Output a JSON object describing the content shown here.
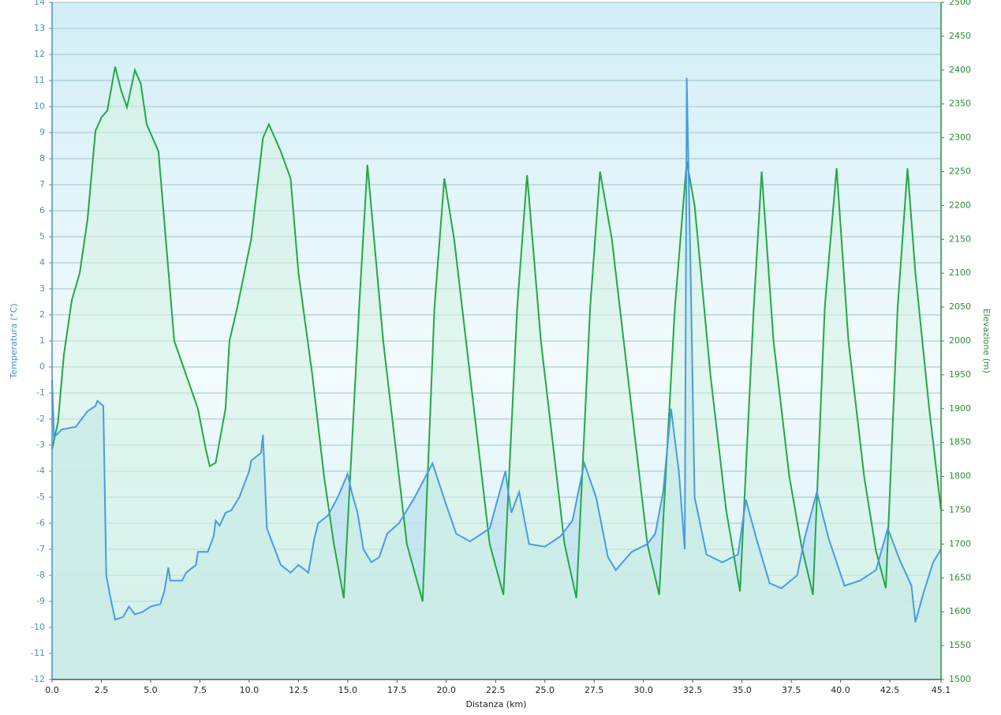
{
  "chart_data": {
    "type": "line",
    "x_label": "Distanza  (km)",
    "y_label": "Temperatura (°C)",
    "y2_label": "Elevazione (m)",
    "xlim": [
      0,
      45.1
    ],
    "xticks": [
      {
        "value": 0,
        "label": "0.0"
      },
      2.5,
      {
        "value": 5,
        "label": "5.0"
      },
      7.5,
      {
        "value": 10,
        "label": "10.0"
      },
      12.5,
      {
        "value": 15,
        "label": "15.0"
      },
      17.5,
      {
        "value": 20,
        "label": "20.0"
      },
      22.5,
      {
        "value": 25,
        "label": "25.0"
      },
      27.5,
      {
        "value": 30,
        "label": "30.0"
      },
      32.5,
      {
        "value": 35,
        "label": "35.0"
      },
      37.5,
      {
        "value": 40,
        "label": "40.0"
      },
      42.5,
      45.1
    ],
    "ylim": [
      -12,
      14
    ],
    "yticks": [
      -12,
      -11,
      -10,
      -9,
      -8,
      -7,
      -6,
      -5,
      -4,
      -3,
      -2,
      -1,
      0,
      1,
      2,
      3,
      4,
      5,
      6,
      7,
      8,
      9,
      10,
      11,
      12,
      13,
      14
    ],
    "y2lim": [
      1500,
      2500
    ],
    "y2ticks": [
      1500,
      1550,
      1600,
      1650,
      1700,
      1750,
      1800,
      1850,
      1900,
      1950,
      2000,
      2050,
      2100,
      2150,
      2200,
      2250,
      2300,
      2350,
      2400,
      2450,
      2500
    ],
    "grid": true,
    "series": [
      {
        "color": "#4a9be0",
        "fill": "#bfe3ee",
        "x": [
          0,
          0.1,
          0.5,
          1.2,
          1.5,
          1.8,
          2.2,
          2.3,
          2.6,
          2.75,
          3,
          3.2,
          3.6,
          3.9,
          4.2,
          4.6,
          5,
          5.5,
          5.7,
          5.9,
          6,
          6.6,
          6.8,
          7.3,
          7.4,
          7.9,
          8.2,
          8.3,
          8.5,
          8.8,
          9.1,
          9.5,
          9.8,
          10,
          10.1,
          10.6,
          10.7,
          10.9,
          11.3,
          11.6,
          12.1,
          12.5,
          13,
          13.3,
          13.5,
          14,
          14.5,
          15,
          15.2,
          15.5,
          15.8,
          16.2,
          16.6,
          17,
          17.6,
          18.4,
          19.3,
          20,
          20.5,
          21.2,
          22.2,
          23,
          23.3,
          23.7,
          24.2,
          25,
          25.8,
          26.4,
          27,
          27.6,
          28.2,
          28.6,
          29.4,
          30.2,
          30.6,
          31,
          31.4,
          31.8,
          32.1,
          32.2,
          32.4,
          32.6,
          33.2,
          34,
          34.8,
          35.2,
          35.7,
          36.4,
          37,
          37.8,
          38.2,
          38.8,
          39.4,
          40.2,
          41,
          41.8,
          42.4,
          43,
          43.6,
          43.8,
          44.2,
          44.7,
          45.1
        ],
        "values": [
          -0.5,
          -2.7,
          -2.4,
          -2.3,
          -2.0,
          -1.7,
          -1.5,
          -1.3,
          -1.5,
          -8,
          -9,
          -9.7,
          -9.6,
          -9.2,
          -9.5,
          -9.4,
          -9.2,
          -9.1,
          -8.6,
          -7.7,
          -8.2,
          -8.2,
          -7.9,
          -7.6,
          -7.1,
          -7.1,
          -6.5,
          -5.9,
          -6.1,
          -5.6,
          -5.5,
          -5.0,
          -4.4,
          -4.0,
          -3.6,
          -3.3,
          -2.6,
          -6.2,
          -7.0,
          -7.6,
          -7.9,
          -7.6,
          -7.9,
          -6.6,
          -6.0,
          -5.7,
          -5.0,
          -4.1,
          -4.8,
          -5.6,
          -7.0,
          -7.5,
          -7.3,
          -6.4,
          -6.0,
          -5.0,
          -3.7,
          -5.3,
          -6.4,
          -6.7,
          -6.2,
          -4.0,
          -5.6,
          -4.8,
          -6.8,
          -6.9,
          -6.5,
          -5.9,
          -3.7,
          -5.0,
          -7.3,
          -7.8,
          -7.1,
          -6.8,
          -6.4,
          -4.8,
          -1.6,
          -4.0,
          -7.0,
          11.1,
          3.5,
          -5.0,
          -7.2,
          -7.5,
          -7.2,
          -5.1,
          -6.5,
          -8.3,
          -8.5,
          -8.0,
          -6.5,
          -4.8,
          -6.6,
          -8.4,
          -8.2,
          -7.8,
          -6.2,
          -7.4,
          -8.4,
          -9.8,
          -8.7,
          -7.5,
          -7.0
        ]
      },
      {
        "color": "#22a845",
        "fill": "#d4f3e2",
        "axis": "y2",
        "x": [
          0,
          0.3,
          0.6,
          1,
          1.4,
          1.8,
          2.2,
          2.5,
          2.8,
          3.2,
          3.5,
          3.8,
          4.2,
          4.5,
          4.8,
          5.4,
          6,
          6.2,
          6.8,
          7.4,
          7.8,
          8,
          8.3,
          8.8,
          9,
          9.4,
          10.1,
          10.7,
          11,
          11.6,
          12.1,
          12.5,
          13.2,
          13.8,
          14.3,
          14.8,
          15.6,
          16,
          16.8,
          17.4,
          18,
          18.8,
          19.4,
          19.9,
          20.4,
          21.4,
          22.2,
          22.9,
          23.6,
          24.1,
          24.8,
          25.4,
          26,
          26.6,
          27.3,
          27.8,
          28.4,
          29.4,
          30.2,
          30.8,
          31.6,
          32.2,
          32.6,
          33.4,
          34.2,
          34.9,
          35.6,
          36,
          36.6,
          37.4,
          38,
          38.6,
          39.2,
          39.8,
          40.4,
          41.2,
          41.8,
          42.3,
          42.9,
          43.4,
          43.8,
          44.5,
          45.1
        ],
        "values": [
          1840,
          1880,
          1980,
          2060,
          2100,
          2180,
          2310,
          2330,
          2340,
          2405,
          2370,
          2345,
          2400,
          2380,
          2320,
          2280,
          2070,
          2000,
          1950,
          1900,
          1840,
          1815,
          1820,
          1900,
          2000,
          2050,
          2150,
          2300,
          2320,
          2280,
          2240,
          2100,
          1950,
          1800,
          1700,
          1620,
          2060,
          2260,
          2000,
          1850,
          1700,
          1615,
          2050,
          2240,
          2150,
          1900,
          1700,
          1625,
          2050,
          2245,
          2000,
          1850,
          1700,
          1620,
          2050,
          2250,
          2150,
          1900,
          1700,
          1625,
          2050,
          2265,
          2200,
          1950,
          1750,
          1630,
          2050,
          2250,
          2000,
          1800,
          1700,
          1625,
          2050,
          2255,
          2000,
          1800,
          1690,
          1635,
          2050,
          2255,
          2100,
          1900,
          1750
        ]
      }
    ]
  }
}
